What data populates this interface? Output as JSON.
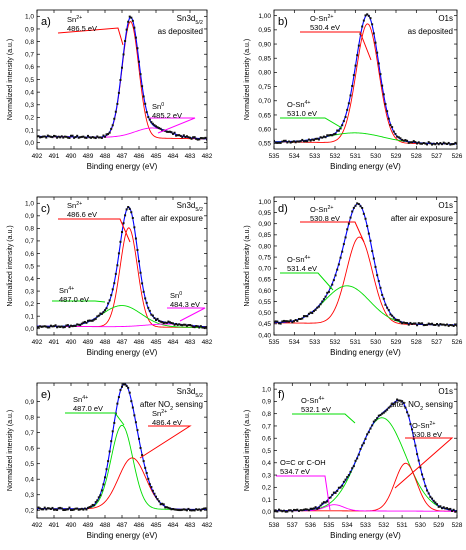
{
  "colors": {
    "data": "#1a1a8c",
    "fit": "#0000ff",
    "red": "#ff0000",
    "green": "#00dd00",
    "magenta": "#ff00ff",
    "frame": "#000000"
  },
  "chart_data": [
    {
      "id": "a",
      "type": "line",
      "panel_label": "a)",
      "title": "Sn3d5/2",
      "title_plain": "Sn3d",
      "title_sub": "5/2",
      "subtitle": "as deposited",
      "xlabel": "Binding energy (eV)",
      "ylabel": "Normalized intensity (a.u.)",
      "xlim": [
        492,
        482
      ],
      "ylim": [
        -0.05,
        1.05
      ],
      "xticks": [
        492,
        491,
        490,
        489,
        488,
        487,
        486,
        485,
        484,
        483,
        482
      ],
      "yticks": [
        0.0,
        0.1,
        0.2,
        0.3,
        0.4,
        0.5,
        0.6,
        0.7,
        0.8,
        0.9,
        1.0
      ],
      "ytick_labels": [
        "0,0",
        "0,1",
        "0,2",
        "0,3",
        "0,4",
        "0,5",
        "0,6",
        "0,7",
        "0,8",
        "0,9",
        "1,0"
      ],
      "background": {
        "left": 0.05,
        "right": 0.03
      },
      "components": [
        {
          "name": "Sn2+",
          "color": "red",
          "center": 486.5,
          "height": 0.92,
          "fwhm": 1.15
        },
        {
          "name": "Sn0",
          "color": "magenta",
          "center": 485.2,
          "height": 0.08,
          "fwhm": 2.4
        }
      ],
      "annotations": [
        {
          "lines": [
            "Sn2+",
            "486.5 eV"
          ],
          "color": "red"
        },
        {
          "lines": [
            "Sn0",
            "485.2 eV"
          ],
          "color": "magenta"
        }
      ]
    },
    {
      "id": "b",
      "type": "line",
      "panel_label": "b)",
      "title": "O1s",
      "title_plain": "O1s",
      "title_sub": "",
      "subtitle": "as deposited",
      "xlabel": "Binding energy (eV)",
      "ylabel": "Normalized intensity (a.u.)",
      "xlim": [
        535,
        526
      ],
      "ylim": [
        0.53,
        1.02
      ],
      "xticks": [
        535,
        534,
        533,
        532,
        531,
        530,
        529,
        528,
        527,
        526
      ],
      "yticks": [
        0.55,
        0.6,
        0.65,
        0.7,
        0.75,
        0.8,
        0.85,
        0.9,
        0.95,
        1.0
      ],
      "ytick_labels": [
        "0,55",
        "0,60",
        "0,65",
        "0,70",
        "0,75",
        "0,80",
        "0,85",
        "0,90",
        "0,95",
        "1,00"
      ],
      "background": {
        "left": 0.555,
        "right": 0.548
      },
      "components": [
        {
          "name": "O-Sn2+",
          "color": "red",
          "center": 530.4,
          "height": 0.42,
          "fwhm": 1.3
        },
        {
          "name": "O-Sn4+",
          "color": "green",
          "center": 531.0,
          "height": 0.035,
          "fwhm": 3.2
        }
      ],
      "annotations": [
        {
          "lines": [
            "O-Sn2+",
            "530.4 eV"
          ],
          "color": "red"
        },
        {
          "lines": [
            "O-Sn4+",
            "531.0 eV"
          ],
          "color": "green"
        }
      ]
    },
    {
      "id": "c",
      "type": "line",
      "panel_label": "c)",
      "title": "Sn3d5/2",
      "title_plain": "Sn3d",
      "title_sub": "5/2",
      "subtitle": "after air exposure",
      "xlabel": "Binding energy (eV)",
      "ylabel": "Normalized intensity (a.u.)",
      "xlim": [
        492,
        482
      ],
      "ylim": [
        -0.05,
        1.05
      ],
      "xticks": [
        492,
        491,
        490,
        489,
        488,
        487,
        486,
        485,
        484,
        483,
        482
      ],
      "yticks": [
        0.0,
        0.1,
        0.2,
        0.3,
        0.4,
        0.5,
        0.6,
        0.7,
        0.8,
        0.9,
        1.0
      ],
      "ytick_labels": [
        "0,0",
        "0,1",
        "0,2",
        "0,3",
        "0,4",
        "0,5",
        "0,6",
        "0,7",
        "0,8",
        "0,9",
        "1,0"
      ],
      "background": {
        "left": 0.02,
        "right": 0.01
      },
      "components": [
        {
          "name": "Sn2+",
          "color": "red",
          "center": 486.6,
          "height": 0.79,
          "fwhm": 1.2
        },
        {
          "name": "Sn4+",
          "color": "green",
          "center": 487.0,
          "height": 0.17,
          "fwhm": 2.7
        },
        {
          "name": "Sn0",
          "color": "magenta",
          "center": 484.3,
          "height": 0.025,
          "fwhm": 3.0
        }
      ],
      "annotations": [
        {
          "lines": [
            "Sn2+",
            "486.6 eV"
          ],
          "color": "red"
        },
        {
          "lines": [
            "Sn4+",
            "487.0 eV"
          ],
          "color": "green"
        },
        {
          "lines": [
            "Sn0",
            "484.3 eV"
          ],
          "color": "magenta"
        }
      ]
    },
    {
      "id": "d",
      "type": "line",
      "panel_label": "d)",
      "title": "O1s",
      "title_plain": "O1s",
      "title_sub": "",
      "subtitle": "after air exposure",
      "xlabel": "Binding energy (eV)",
      "ylabel": "Normalized intensity (a.u.)",
      "xlim": [
        535,
        526
      ],
      "ylim": [
        0.4,
        1.02
      ],
      "xticks": [
        535,
        534,
        533,
        532,
        531,
        530,
        529,
        528,
        527,
        526
      ],
      "yticks": [
        0.4,
        0.45,
        0.5,
        0.55,
        0.6,
        0.65,
        0.7,
        0.75,
        0.8,
        0.85,
        0.9,
        0.95,
        1.0
      ],
      "ytick_labels": [
        "0,40",
        "0,45",
        "0,50",
        "0,55",
        "0,60",
        "0,65",
        "0,70",
        "0,75",
        "0,80",
        "0,85",
        "0,90",
        "0,95",
        "1,00"
      ],
      "background": {
        "left": 0.455,
        "right": 0.445
      },
      "components": [
        {
          "name": "O-Sn2+",
          "color": "red",
          "center": 530.8,
          "height": 0.39,
          "fwhm": 1.5
        },
        {
          "name": "O-Sn4+",
          "color": "green",
          "center": 531.4,
          "height": 0.17,
          "fwhm": 2.6
        }
      ],
      "annotations": [
        {
          "lines": [
            "O-Sn2+",
            "530.8 eV"
          ],
          "color": "red"
        },
        {
          "lines": [
            "O-Sn4+",
            "531.4 eV"
          ],
          "color": "green"
        }
      ]
    },
    {
      "id": "e",
      "type": "line",
      "panel_label": "e)",
      "title": "Sn3d5/2",
      "title_plain": "Sn3d",
      "title_sub": "5/2",
      "subtitle": "after NO2 sensing",
      "subtitle_plain": "after NO",
      "subtitle_sub": "2",
      "subtitle_tail": " sensing",
      "xlabel": "Binding energy (eV)",
      "ylabel": "Normalized intensity (a.u.)",
      "xlim": [
        492,
        482
      ],
      "ylim": [
        0.15,
        1.02
      ],
      "xticks": [
        492,
        491,
        490,
        489,
        488,
        487,
        486,
        485,
        484,
        483,
        482
      ],
      "yticks": [
        0.2,
        0.3,
        0.4,
        0.5,
        0.6,
        0.7,
        0.8,
        0.9
      ],
      "ytick_labels": [
        "0,2",
        "0,3",
        "0,4",
        "0,5",
        "0,6",
        "0,7",
        "0,8",
        "0,9"
      ],
      "background": {
        "left": 0.21,
        "right": 0.205
      },
      "components": [
        {
          "name": "Sn4+",
          "color": "green",
          "center": 487.0,
          "height": 0.54,
          "fwhm": 1.5
        },
        {
          "name": "Sn2+",
          "color": "red",
          "center": 486.4,
          "height": 0.33,
          "fwhm": 1.9
        }
      ],
      "annotations": [
        {
          "lines": [
            "Sn4+",
            "487.0 eV"
          ],
          "color": "green"
        },
        {
          "lines": [
            "Sn2+",
            "486.4 eV"
          ],
          "color": "red"
        }
      ]
    },
    {
      "id": "f",
      "type": "line",
      "panel_label": "f)",
      "title": "O1s",
      "title_plain": "O1s",
      "title_sub": "",
      "subtitle": "after NO2 sensing",
      "subtitle_plain": "after NO",
      "subtitle_sub": "2",
      "subtitle_tail": " sensing",
      "xlabel": "Binding energy (eV)",
      "ylabel": "Normalized intensity (a.u.)",
      "xlim": [
        538,
        528
      ],
      "ylim": [
        -0.05,
        1.05
      ],
      "xticks": [
        538,
        537,
        536,
        535,
        534,
        533,
        532,
        531,
        530,
        529,
        528
      ],
      "yticks": [
        0.0,
        0.1,
        0.2,
        0.3,
        0.4,
        0.5,
        0.6,
        0.7,
        0.8,
        0.9,
        1.0
      ],
      "ytick_labels": [
        "0,0",
        "0,1",
        "0,2",
        "0,3",
        "0,4",
        "0,5",
        "0,6",
        "0,7",
        "0,8",
        "0,9",
        "1,0"
      ],
      "background": {
        "left": 0.01,
        "right": 0.005
      },
      "components": [
        {
          "name": "O-Sn4+",
          "color": "green",
          "center": 532.1,
          "height": 0.76,
          "fwhm": 3.0
        },
        {
          "name": "O-Sn2+",
          "color": "red",
          "center": 530.8,
          "height": 0.39,
          "fwhm": 1.4
        },
        {
          "name": "O=C or C-OH",
          "color": "magenta",
          "center": 534.7,
          "height": 0.05,
          "fwhm": 1.2
        }
      ],
      "annotations": [
        {
          "lines": [
            "O-Sn4+",
            "532.1 eV"
          ],
          "color": "green"
        },
        {
          "lines": [
            "O-Sn2+",
            "530.8 eV"
          ],
          "color": "red"
        },
        {
          "lines": [
            "O=C or C-OH",
            "534.7 eV"
          ],
          "color": "magenta"
        }
      ]
    }
  ]
}
